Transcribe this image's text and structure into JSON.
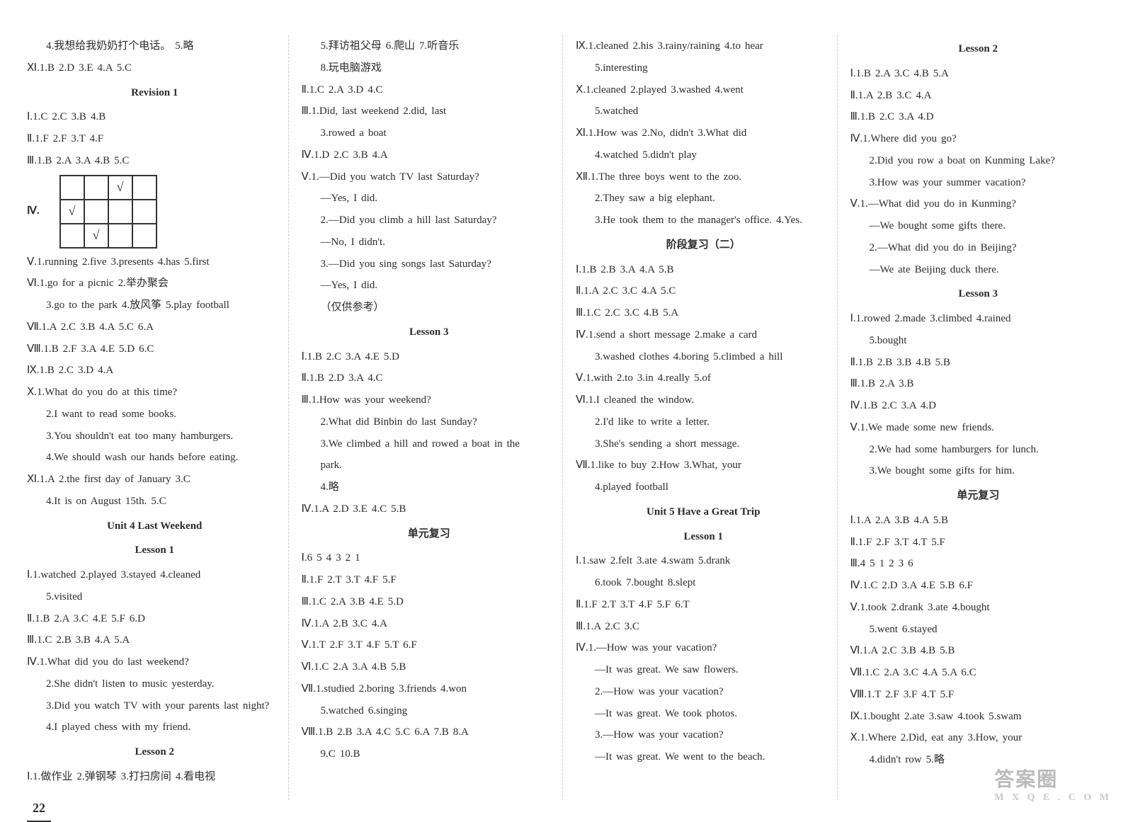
{
  "columns": [
    {
      "lines": [
        {
          "t": "ln ind",
          "v": "4.我想给我奶奶打个电话。  5.略"
        },
        {
          "t": "ln",
          "v": "Ⅺ.1.B  2.D  3.E  4.A  5.C"
        },
        {
          "t": "hd",
          "v": "Revision 1"
        },
        {
          "t": "ln",
          "v": "Ⅰ.1.C  2.C  3.B  4.B"
        },
        {
          "t": "ln",
          "v": "Ⅱ.1.F  2.F  3.T  4.F"
        },
        {
          "t": "ln",
          "v": "Ⅲ.1.B  2.A  3.A  4.B  5.C"
        },
        {
          "t": "grid"
        },
        {
          "t": "ln",
          "v": "Ⅴ.1.running  2.five  3.presents  4.has  5.first"
        },
        {
          "t": "ln",
          "v": "Ⅵ.1.go for a picnic  2.举办聚会"
        },
        {
          "t": "ln ind",
          "v": "3.go to the park  4.放风筝  5.play football"
        },
        {
          "t": "ln",
          "v": "Ⅶ.1.A  2.C  3.B  4.A  5.C  6.A"
        },
        {
          "t": "ln",
          "v": "Ⅷ.1.B  2.F  3.A  4.E  5.D  6.C"
        },
        {
          "t": "ln",
          "v": "Ⅸ.1.B  2.C  3.D  4.A"
        },
        {
          "t": "ln",
          "v": "Ⅹ.1.What do you do at this time?"
        },
        {
          "t": "ln ind",
          "v": "2.I want to read some books."
        },
        {
          "t": "ln ind",
          "v": "3.You shouldn't eat too many hamburgers."
        },
        {
          "t": "ln ind",
          "v": "4.We should wash our hands before eating."
        },
        {
          "t": "ln",
          "v": "Ⅺ.1.A  2.the first day of January  3.C"
        },
        {
          "t": "ln ind",
          "v": "4.It is on August 15th.  5.C"
        },
        {
          "t": "hd",
          "v": "Unit 4  Last Weekend"
        },
        {
          "t": "hd",
          "v": "Lesson 1"
        },
        {
          "t": "ln",
          "v": "Ⅰ.1.watched  2.played  3.stayed  4.cleaned"
        },
        {
          "t": "ln ind",
          "v": "5.visited"
        },
        {
          "t": "ln",
          "v": "Ⅱ.1.B  2.A  3.C  4.E  5.F  6.D"
        },
        {
          "t": "ln",
          "v": "Ⅲ.1.C  2.B  3.B  4.A  5.A"
        },
        {
          "t": "ln",
          "v": "Ⅳ.1.What did you do last weekend?"
        },
        {
          "t": "ln ind",
          "v": "2.She didn't listen to music yesterday."
        },
        {
          "t": "ln ind",
          "v": "3.Did you watch TV with your parents last night?"
        },
        {
          "t": "ln ind",
          "v": "4.I played chess with my friend."
        },
        {
          "t": "hd",
          "v": "Lesson 2"
        },
        {
          "t": "ln",
          "v": "Ⅰ.1.做作业  2.弹钢琴  3.打扫房间  4.看电视"
        }
      ],
      "pagenum": "22"
    },
    {
      "lines": [
        {
          "t": "ln ind",
          "v": "5.拜访祖父母  6.爬山  7.听音乐"
        },
        {
          "t": "ln ind",
          "v": "8.玩电脑游戏"
        },
        {
          "t": "ln",
          "v": "Ⅱ.1.C  2.A  3.D  4.C"
        },
        {
          "t": "ln",
          "v": "Ⅲ.1.Did, last weekend  2.did, last"
        },
        {
          "t": "ln ind",
          "v": "3.rowed a boat"
        },
        {
          "t": "ln",
          "v": "Ⅳ.1.D  2.C  3.B  4.A"
        },
        {
          "t": "ln",
          "v": "Ⅴ.1.—Did you watch TV last Saturday?"
        },
        {
          "t": "ln ind",
          "v": "  —Yes, I did."
        },
        {
          "t": "ln ind",
          "v": "2.—Did you climb a hill last Saturday?"
        },
        {
          "t": "ln ind",
          "v": "  —No, I didn't."
        },
        {
          "t": "ln ind",
          "v": "3.—Did you sing songs last Saturday?"
        },
        {
          "t": "ln ind",
          "v": "  —Yes, I did."
        },
        {
          "t": "ln ind",
          "v": "（仅供参考）"
        },
        {
          "t": "hd",
          "v": "Lesson 3"
        },
        {
          "t": "ln",
          "v": "Ⅰ.1.B  2.C  3.A  4.E  5.D"
        },
        {
          "t": "ln",
          "v": "Ⅱ.1.B  2.D  3.A  4.C"
        },
        {
          "t": "ln",
          "v": "Ⅲ.1.How was your weekend?"
        },
        {
          "t": "ln ind",
          "v": "2.What did Binbin do last Sunday?"
        },
        {
          "t": "ln ind",
          "v": "3.We climbed a hill and rowed a boat in the"
        },
        {
          "t": "ln ind",
          "v": "  park."
        },
        {
          "t": "ln ind",
          "v": "4.略"
        },
        {
          "t": "ln",
          "v": "Ⅳ.1.A  2.D  3.E  4.C  5.B"
        },
        {
          "t": "hd",
          "v": "单元复习"
        },
        {
          "t": "ln",
          "v": "Ⅰ.6  5  4  3  2  1"
        },
        {
          "t": "ln",
          "v": "Ⅱ.1.F  2.T  3.T  4.F  5.F"
        },
        {
          "t": "ln",
          "v": "Ⅲ.1.C  2.A  3.B  4.E  5.D"
        },
        {
          "t": "ln",
          "v": "Ⅳ.1.A  2.B  3.C  4.A"
        },
        {
          "t": "ln",
          "v": "Ⅴ.1.T  2.F  3.T  4.F  5.T  6.F"
        },
        {
          "t": "ln",
          "v": "Ⅵ.1.C  2.A  3.A  4.B  5.B"
        },
        {
          "t": "ln",
          "v": "Ⅶ.1.studied  2.boring  3.friends  4.won"
        },
        {
          "t": "ln ind",
          "v": "5.watched  6.singing"
        },
        {
          "t": "ln",
          "v": "Ⅷ.1.B  2.B  3.A  4.C  5.C  6.A  7.B  8.A"
        },
        {
          "t": "ln ind",
          "v": "9.C  10.B"
        }
      ]
    },
    {
      "lines": [
        {
          "t": "ln",
          "v": "Ⅸ.1.cleaned  2.his  3.rainy/raining  4.to hear"
        },
        {
          "t": "ln ind",
          "v": "5.interesting"
        },
        {
          "t": "ln",
          "v": "Ⅹ.1.cleaned  2.played  3.washed  4.went"
        },
        {
          "t": "ln ind",
          "v": "5.watched"
        },
        {
          "t": "ln",
          "v": "Ⅺ.1.How was  2.No, didn't  3.What did"
        },
        {
          "t": "ln ind",
          "v": "4.watched  5.didn't play"
        },
        {
          "t": "ln",
          "v": "Ⅻ.1.The three boys went to the zoo."
        },
        {
          "t": "ln ind",
          "v": "2.They saw a big elephant."
        },
        {
          "t": "ln ind",
          "v": "3.He took them to the manager's office.  4.Yes."
        },
        {
          "t": "hd",
          "v": "阶段复习（二）"
        },
        {
          "t": "ln",
          "v": "Ⅰ.1.B  2.B  3.A  4.A  5.B"
        },
        {
          "t": "ln",
          "v": "Ⅱ.1.A  2.C  3.C  4.A  5.C"
        },
        {
          "t": "ln",
          "v": "Ⅲ.1.C  2.C  3.C  4.B  5.A"
        },
        {
          "t": "ln",
          "v": "Ⅳ.1.send a short message  2.make a card"
        },
        {
          "t": "ln ind",
          "v": "3.washed clothes  4.boring  5.climbed a hill"
        },
        {
          "t": "ln",
          "v": "Ⅴ.1.with  2.to  3.in  4.really  5.of"
        },
        {
          "t": "ln",
          "v": "Ⅵ.1.I cleaned the window."
        },
        {
          "t": "ln ind",
          "v": "2.I'd like to write a letter."
        },
        {
          "t": "ln ind",
          "v": "3.She's sending a short message."
        },
        {
          "t": "ln",
          "v": "Ⅶ.1.like to buy  2.How  3.What, your"
        },
        {
          "t": "ln ind",
          "v": "4.played football"
        },
        {
          "t": "hd",
          "v": "Unit 5  Have a Great Trip"
        },
        {
          "t": "hd",
          "v": "Lesson 1"
        },
        {
          "t": "ln",
          "v": "Ⅰ.1.saw  2.felt  3.ate  4.swam  5.drank"
        },
        {
          "t": "ln ind",
          "v": "6.took  7.bought  8.slept"
        },
        {
          "t": "ln",
          "v": "Ⅱ.1.F  2.T  3.T  4.F  5.F  6.T"
        },
        {
          "t": "ln",
          "v": "Ⅲ.1.A  2.C  3.C"
        },
        {
          "t": "ln",
          "v": "Ⅳ.1.—How was your vacation?"
        },
        {
          "t": "ln ind",
          "v": "  —It was great. We saw flowers."
        },
        {
          "t": "ln ind",
          "v": "2.—How was your vacation?"
        },
        {
          "t": "ln ind",
          "v": "  —It was great. We took photos."
        },
        {
          "t": "ln ind",
          "v": "3.—How was your vacation?"
        },
        {
          "t": "ln ind",
          "v": "  —It was great. We went to the beach."
        }
      ]
    },
    {
      "lines": [
        {
          "t": "hd",
          "v": "Lesson 2"
        },
        {
          "t": "ln",
          "v": "Ⅰ.1.B  2.A  3.C  4.B  5.A"
        },
        {
          "t": "ln",
          "v": "Ⅱ.1.A  2.B  3.C  4.A"
        },
        {
          "t": "ln",
          "v": "Ⅲ.1.B  2.C  3.A  4.D"
        },
        {
          "t": "ln",
          "v": "Ⅳ.1.Where did you go?"
        },
        {
          "t": "ln ind",
          "v": "2.Did you row a boat on Kunming Lake?"
        },
        {
          "t": "ln ind",
          "v": "3.How was your summer vacation?"
        },
        {
          "t": "ln",
          "v": "Ⅴ.1.—What did you do in Kunming?"
        },
        {
          "t": "ln ind",
          "v": "  —We bought some gifts there."
        },
        {
          "t": "ln ind",
          "v": "2.—What did you do in Beijing?"
        },
        {
          "t": "ln ind",
          "v": "  —We ate Beijing duck there."
        },
        {
          "t": "hd",
          "v": "Lesson 3"
        },
        {
          "t": "ln",
          "v": "Ⅰ.1.rowed  2.made  3.climbed  4.rained"
        },
        {
          "t": "ln ind",
          "v": "5.bought"
        },
        {
          "t": "ln",
          "v": "Ⅱ.1.B  2.B  3.B  4.B  5.B"
        },
        {
          "t": "ln",
          "v": "Ⅲ.1.B  2.A  3.B"
        },
        {
          "t": "ln",
          "v": "Ⅳ.1.B  2.C  3.A  4.D"
        },
        {
          "t": "ln",
          "v": "Ⅴ.1.We made some new friends."
        },
        {
          "t": "ln ind",
          "v": "2.We had some hamburgers for lunch."
        },
        {
          "t": "ln ind",
          "v": "3.We bought some gifts for him."
        },
        {
          "t": "hd",
          "v": "单元复习"
        },
        {
          "t": "ln",
          "v": "Ⅰ.1.A  2.A  3.B  4.A  5.B"
        },
        {
          "t": "ln",
          "v": "Ⅱ.1.F  2.F  3.T  4.T  5.F"
        },
        {
          "t": "ln",
          "v": "Ⅲ.4  5  1  2  3  6"
        },
        {
          "t": "ln",
          "v": "Ⅳ.1.C  2.D  3.A  4.E  5.B  6.F"
        },
        {
          "t": "ln",
          "v": "Ⅴ.1.took  2.drank  3.ate  4.bought"
        },
        {
          "t": "ln ind",
          "v": "5.went  6.stayed"
        },
        {
          "t": "ln",
          "v": "Ⅵ.1.A  2.C  3.B  4.B  5.B"
        },
        {
          "t": "ln",
          "v": "Ⅶ.1.C  2.A  3.C  4.A  5.A  6.C"
        },
        {
          "t": "ln",
          "v": "Ⅷ.1.T  2.F  3.F  4.T  5.F"
        },
        {
          "t": "ln",
          "v": "Ⅸ.1.bought  2.ate  3.saw  4.took  5.swam"
        },
        {
          "t": "ln",
          "v": "Ⅹ.1.Where  2.Did, eat any  3.How, your"
        },
        {
          "t": "ln ind",
          "v": "4.didn't row  5.略"
        }
      ]
    }
  ],
  "grid": {
    "rows": 3,
    "cols": 4,
    "cells": [
      [
        "",
        "",
        "√",
        ""
      ],
      [
        "√",
        "",
        "",
        ""
      ],
      [
        "",
        "√",
        "",
        ""
      ]
    ],
    "outer_check_top": "√",
    "outer_check_bottom": "√",
    "label": "Ⅳ."
  },
  "watermark": {
    "big": "答案圈",
    "small": "M X Q E . C O M"
  }
}
